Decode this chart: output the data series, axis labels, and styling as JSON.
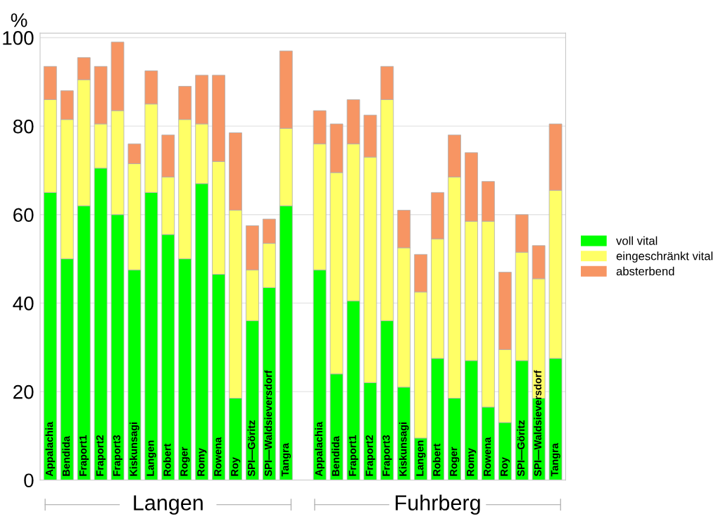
{
  "chart_data": {
    "type": "bar",
    "stacked": true,
    "ylabel": "%",
    "categories": [
      "Appalachia",
      "Bendida",
      "Fraport1",
      "Fraport2",
      "Fraport3",
      "Kiskunsagi",
      "Langen",
      "Robert",
      "Roger",
      "Romy",
      "Rowena",
      "Roy",
      "SPI—Göritz",
      "SPI—Waldsieversdorf",
      "Tangra",
      null,
      "Appalachia",
      "Bendida",
      "Fraport1",
      "Fraport2",
      "Fraport3",
      "Kiskunsagi",
      "Langen",
      "Robert",
      "Roger",
      "Romy",
      "Rowena",
      "Roy",
      "SPI—Göritz",
      "SPI—Waldsieversdorf",
      "Tangra"
    ],
    "series": [
      {
        "name": "voll vital",
        "color": "#00ff00",
        "values": [
          65,
          50,
          62,
          70.5,
          60,
          47.5,
          65,
          55.5,
          50,
          67,
          46.5,
          18.5,
          36,
          43.5,
          62,
          null,
          47.5,
          24,
          40.5,
          22,
          36,
          21,
          9.5,
          27.5,
          18.5,
          27,
          16.5,
          13,
          27,
          18.5,
          27.5
        ]
      },
      {
        "name": "eingeschränkt vital",
        "color": "#ffff66",
        "values": [
          21,
          31.5,
          28.5,
          10,
          23.5,
          24,
          20,
          13,
          31.5,
          13.5,
          25.5,
          42.5,
          11.5,
          10,
          17.5,
          null,
          28.5,
          45.5,
          35.5,
          51,
          50,
          31.5,
          33,
          27,
          50,
          31.5,
          42,
          16.5,
          24.5,
          27,
          38
        ]
      },
      {
        "name": "absterbend",
        "color": "#f79563",
        "values": [
          7.5,
          6.5,
          5,
          13,
          15.5,
          4.5,
          7.5,
          9.5,
          7.5,
          11,
          19.5,
          17.5,
          10,
          5.5,
          17.5,
          null,
          7.5,
          11,
          10,
          9.5,
          7.5,
          8.5,
          8.5,
          10.5,
          9.5,
          15.5,
          9,
          17.5,
          8.5,
          7.5,
          15
        ]
      }
    ],
    "ylim": [
      0,
      101
    ],
    "yticks": [
      0,
      20,
      40,
      60,
      80,
      100
    ],
    "grid": "y",
    "legend": "right",
    "annotations": [
      "Langen",
      "Fuhrberg"
    ]
  }
}
